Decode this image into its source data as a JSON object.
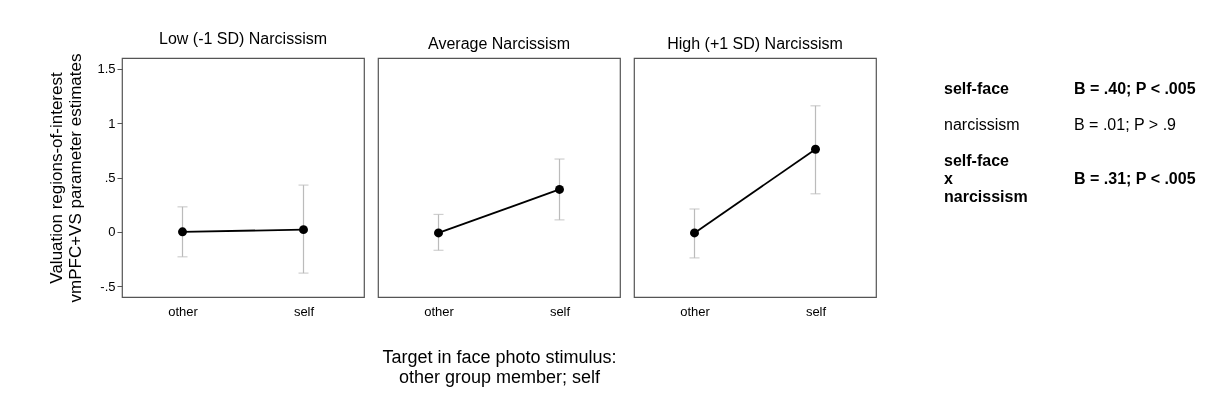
{
  "chart_data": [
    {
      "type": "line",
      "title": "Low (-1 SD) Narcissism",
      "ylabel": "Valuation regions-of-interest\nvmPFC+VS parameter estimates",
      "categories": [
        "other",
        "self"
      ],
      "series": [
        {
          "color": "#000000",
          "values": [
            0,
            0.02
          ],
          "errors": [
            [
              -0.23,
              0.23
            ],
            [
              -0.38,
              0.43
            ]
          ]
        }
      ],
      "ylim": [
        -0.6,
        1.6
      ],
      "yticks": [
        {
          "value": -0.5,
          "label": "-.5"
        },
        0,
        {
          "value": 0.5,
          "label": ".5"
        },
        1,
        1.5
      ],
      "grid": false,
      "marker": "circle",
      "line_style": "solid"
    },
    {
      "type": "line",
      "title": "Average Narcissism",
      "xlabel": "Target in face photo stimulus:\nother group member; self",
      "categories": [
        "other",
        "self"
      ],
      "series": [
        {
          "color": "#000000",
          "values": [
            -0.01,
            0.39
          ],
          "errors": [
            [
              -0.17,
              0.16
            ],
            [
              0.11,
              0.67
            ]
          ]
        }
      ],
      "ylim": [
        -0.6,
        1.6
      ],
      "tick_labels": "x",
      "grid": false,
      "marker": "circle",
      "line_style": "solid"
    },
    {
      "type": "line",
      "title": "High (+1 SD) Narcissism",
      "categories": [
        "other",
        "self"
      ],
      "series": [
        {
          "color": "#000000",
          "values": [
            -0.01,
            0.76
          ],
          "errors": [
            [
              -0.24,
              0.21
            ],
            [
              0.35,
              1.16
            ]
          ]
        }
      ],
      "ylim": [
        -0.6,
        1.6
      ],
      "tick_labels": "x",
      "grid": false,
      "marker": "circle",
      "line_style": "solid"
    },
    {
      "type": "other",
      "annotations": [
        "self-face",
        "B = .40; P < .005",
        "narcissism",
        "B = .01; P > .9",
        "self-face\nx\nnarcissism",
        "B = .31; P < .005"
      ]
    }
  ]
}
